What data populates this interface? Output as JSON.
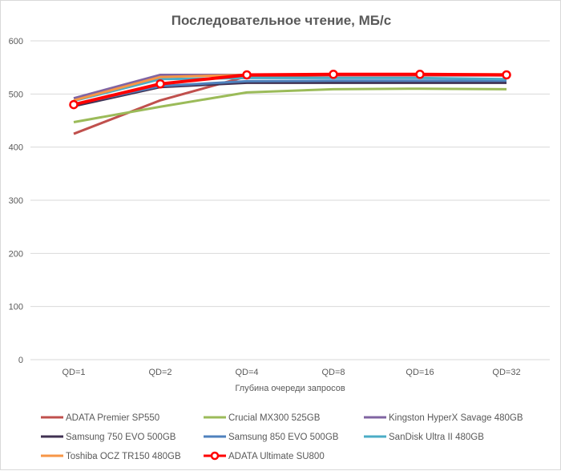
{
  "chart_data": {
    "type": "line",
    "title": "Последовательное чтение, МБ/с",
    "xlabel": "Глубина очереди  запросов",
    "ylabel": "",
    "ylim": [
      0,
      600
    ],
    "yticks": [
      0,
      100,
      200,
      300,
      400,
      500,
      600
    ],
    "grid": true,
    "legend_position": "bottom",
    "categories": [
      "QD=1",
      "QD=2",
      "QD=4",
      "QD=8",
      "QD=16",
      "QD=32"
    ],
    "series": [
      {
        "name": "ADATA Premier SP550",
        "color": "#c0504d",
        "values": [
          425,
          488,
          533,
          535,
          535,
          535
        ]
      },
      {
        "name": "Crucial MX300 525GB",
        "color": "#9bbb59",
        "values": [
          447,
          476,
          503,
          509,
          510,
          509
        ]
      },
      {
        "name": "Kingston HyperX Savage 480GB",
        "color": "#8064a2",
        "values": [
          492,
          536,
          536,
          536,
          536,
          535
        ]
      },
      {
        "name": "Samsung 750 EVO 500GB",
        "color": "#403152",
        "values": [
          477,
          513,
          521,
          521,
          521,
          521
        ]
      },
      {
        "name": "Samsung 850 EVO 500GB",
        "color": "#4f81bd",
        "values": [
          480,
          515,
          524,
          525,
          525,
          525
        ]
      },
      {
        "name": "SanDisk Ultra II 480GB",
        "color": "#4bacc6",
        "values": [
          487,
          528,
          530,
          530,
          530,
          528
        ]
      },
      {
        "name": "Toshiba OCZ TR150 480GB",
        "color": "#f79646",
        "values": [
          488,
          532,
          536,
          537,
          537,
          537
        ]
      },
      {
        "name": "ADATA Ultimate SU800",
        "color": "#ff0000",
        "values": [
          480,
          519,
          536,
          537,
          537,
          536
        ],
        "markers": true
      }
    ]
  }
}
